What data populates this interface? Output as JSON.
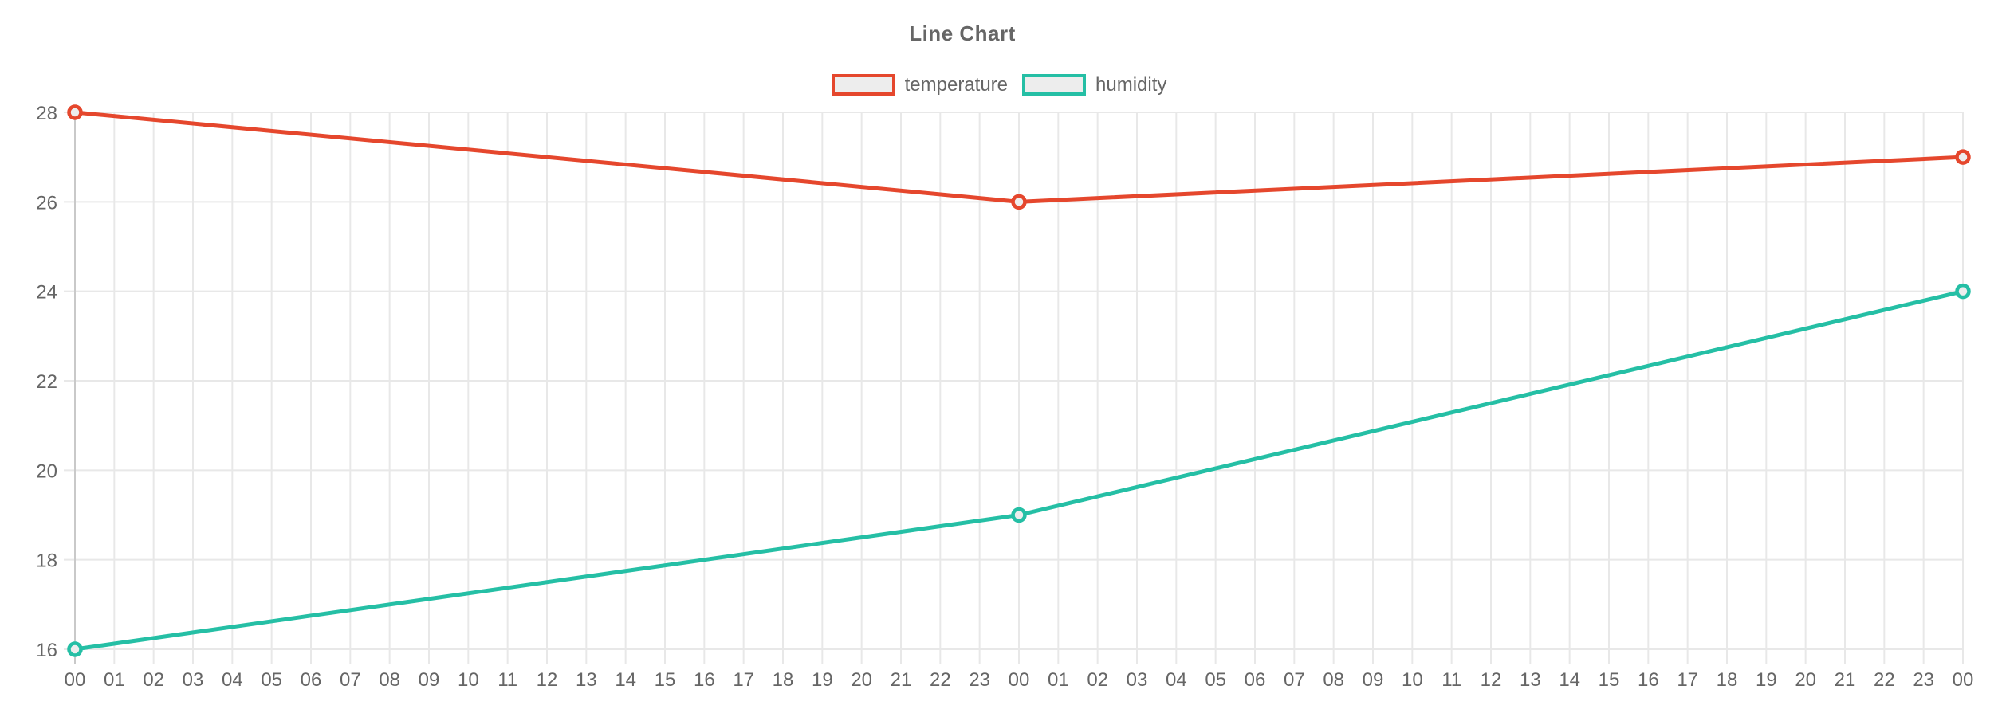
{
  "chart": {
    "title": "Line Chart"
  },
  "chart_data": {
    "type": "line",
    "title": "Line Chart",
    "x_tick_labels": [
      "00",
      "01",
      "02",
      "03",
      "04",
      "05",
      "06",
      "07",
      "08",
      "09",
      "10",
      "11",
      "12",
      "13",
      "14",
      "15",
      "16",
      "17",
      "18",
      "19",
      "20",
      "21",
      "22",
      "23",
      "00",
      "01",
      "02",
      "03",
      "04",
      "05",
      "06",
      "07",
      "08",
      "09",
      "10",
      "11",
      "12",
      "13",
      "14",
      "15",
      "16",
      "17",
      "18",
      "19",
      "20",
      "21",
      "22",
      "23",
      "00"
    ],
    "y_tick_labels": [
      "16",
      "18",
      "20",
      "22",
      "24",
      "26",
      "28"
    ],
    "ylim": [
      16,
      28
    ],
    "ytick_step": 2,
    "grid": true,
    "legend_position": "top",
    "series": [
      {
        "name": "temperature",
        "color": "#e5472d",
        "x_indices": [
          0,
          24,
          48
        ],
        "values": [
          28,
          26,
          27
        ]
      },
      {
        "name": "humidity",
        "color": "#25bfa5",
        "x_indices": [
          0,
          24,
          48
        ],
        "values": [
          16,
          19,
          24
        ]
      }
    ],
    "styles": {
      "background": "#ffffff",
      "text_color": "#666666",
      "grid_color": "#e8e8e8",
      "first_gridline_color": "#c9c9c9",
      "point_fill": "#ededed",
      "legend_box_fill": "#ededed"
    }
  }
}
